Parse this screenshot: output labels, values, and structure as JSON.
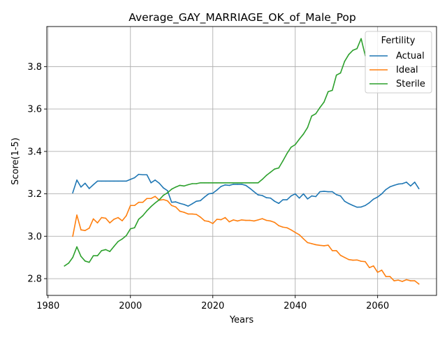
{
  "chart_data": {
    "type": "line",
    "title": "Average_GAY_MARRIAGE_OK_of_Male_Pop",
    "xlabel": "Years",
    "ylabel": "Score(1-5)",
    "xlim": [
      1979.7,
      2074.3
    ],
    "ylim": [
      2.721,
      3.989
    ],
    "xticks": [
      1980,
      2000,
      2020,
      2040,
      2060
    ],
    "yticks": [
      2.8,
      3.0,
      3.2,
      3.4,
      3.6,
      3.8
    ],
    "xtick_labels": [
      "1980",
      "2000",
      "2020",
      "2040",
      "2060"
    ],
    "ytick_labels": [
      "2.8",
      "3.0",
      "3.2",
      "3.4",
      "3.6",
      "3.8"
    ],
    "grid": true,
    "legend": {
      "title": "Fertility",
      "placement": "top-right"
    },
    "series": [
      {
        "name": "Actual",
        "color": "#1f77b4",
        "x": [
          1986,
          1987,
          1988,
          1989,
          1990,
          1991,
          1992,
          1993,
          1994,
          1995,
          1996,
          1997,
          1998,
          1999,
          2000,
          2001,
          2002,
          2003,
          2004,
          2005,
          2006,
          2007,
          2008,
          2009,
          2010,
          2011,
          2012,
          2013,
          2014,
          2015,
          2016,
          2017,
          2018,
          2019,
          2020,
          2021,
          2022,
          2023,
          2024,
          2025,
          2026,
          2027,
          2028,
          2029,
          2030,
          2031,
          2032,
          2033,
          2034,
          2035,
          2036,
          2037,
          2038,
          2039,
          2040,
          2041,
          2042,
          2043,
          2044,
          2045,
          2046,
          2047,
          2048,
          2049,
          2050,
          2051,
          2052,
          2053,
          2054,
          2055,
          2056,
          2057,
          2058,
          2059,
          2060,
          2061,
          2062,
          2063,
          2064,
          2065,
          2066,
          2067,
          2068,
          2069,
          2070
        ],
        "y": [
          3.205,
          3.265,
          3.232,
          3.25,
          3.225,
          3.243,
          3.26,
          3.26,
          3.26,
          3.26,
          3.26,
          3.26,
          3.26,
          3.26,
          3.268,
          3.276,
          3.292,
          3.29,
          3.29,
          3.252,
          3.265,
          3.25,
          3.228,
          3.215,
          3.16,
          3.162,
          3.155,
          3.15,
          3.142,
          3.153,
          3.165,
          3.168,
          3.185,
          3.2,
          3.203,
          3.218,
          3.235,
          3.242,
          3.24,
          3.245,
          3.245,
          3.245,
          3.24,
          3.226,
          3.21,
          3.195,
          3.192,
          3.182,
          3.18,
          3.165,
          3.155,
          3.172,
          3.172,
          3.19,
          3.2,
          3.18,
          3.2,
          3.176,
          3.19,
          3.187,
          3.21,
          3.212,
          3.21,
          3.21,
          3.196,
          3.19,
          3.165,
          3.154,
          3.145,
          3.137,
          3.138,
          3.145,
          3.158,
          3.175,
          3.185,
          3.2,
          3.22,
          3.233,
          3.24,
          3.246,
          3.248,
          3.255,
          3.237,
          3.255,
          3.225
        ]
      },
      {
        "name": "Ideal",
        "color": "#ff7f0e",
        "x": [
          1986,
          1987,
          1988,
          1989,
          1990,
          1991,
          1992,
          1993,
          1994,
          1995,
          1996,
          1997,
          1998,
          1999,
          2000,
          2001,
          2002,
          2003,
          2004,
          2005,
          2006,
          2007,
          2008,
          2009,
          2010,
          2011,
          2012,
          2013,
          2014,
          2015,
          2016,
          2017,
          2018,
          2019,
          2020,
          2021,
          2022,
          2023,
          2024,
          2025,
          2026,
          2027,
          2028,
          2029,
          2030,
          2031,
          2032,
          2033,
          2034,
          2035,
          2036,
          2037,
          2038,
          2039,
          2040,
          2041,
          2042,
          2043,
          2044,
          2045,
          2046,
          2047,
          2048,
          2049,
          2050,
          2051,
          2052,
          2053,
          2054,
          2055,
          2056,
          2057,
          2058,
          2059,
          2060,
          2061,
          2062,
          2063,
          2064,
          2065,
          2066,
          2067,
          2068,
          2069,
          2070
        ],
        "y": [
          3.0,
          3.1,
          3.03,
          3.027,
          3.038,
          3.082,
          3.063,
          3.088,
          3.085,
          3.063,
          3.08,
          3.088,
          3.073,
          3.097,
          3.145,
          3.145,
          3.16,
          3.16,
          3.178,
          3.178,
          3.188,
          3.17,
          3.173,
          3.167,
          3.145,
          3.138,
          3.118,
          3.113,
          3.105,
          3.105,
          3.103,
          3.09,
          3.073,
          3.07,
          3.06,
          3.08,
          3.078,
          3.088,
          3.068,
          3.077,
          3.072,
          3.077,
          3.075,
          3.075,
          3.072,
          3.077,
          3.083,
          3.075,
          3.072,
          3.065,
          3.05,
          3.043,
          3.04,
          3.03,
          3.018,
          3.007,
          2.988,
          2.97,
          2.965,
          2.96,
          2.957,
          2.955,
          2.958,
          2.932,
          2.932,
          2.91,
          2.9,
          2.89,
          2.887,
          2.888,
          2.882,
          2.88,
          2.852,
          2.86,
          2.83,
          2.84,
          2.81,
          2.81,
          2.79,
          2.793,
          2.787,
          2.795,
          2.79,
          2.79,
          2.775
        ]
      },
      {
        "name": "Sterile",
        "color": "#2ca02c",
        "x": [
          1984,
          1985,
          1986,
          1987,
          1988,
          1989,
          1990,
          1991,
          1992,
          1993,
          1994,
          1995,
          1996,
          1997,
          1998,
          1999,
          2000,
          2001,
          2002,
          2003,
          2004,
          2005,
          2006,
          2007,
          2008,
          2009,
          2010,
          2011,
          2012,
          2013,
          2014,
          2015,
          2016,
          2017,
          2018,
          2019,
          2020,
          2021,
          2022,
          2023,
          2024,
          2025,
          2026,
          2027,
          2028,
          2029,
          2030,
          2031,
          2032,
          2033,
          2034,
          2035,
          2036,
          2037,
          2038,
          2039,
          2040,
          2041,
          2042,
          2043,
          2044,
          2045,
          2046,
          2047,
          2048,
          2049,
          2050,
          2051,
          2052,
          2053,
          2054,
          2055,
          2056,
          2057
        ],
        "y": [
          2.86,
          2.873,
          2.9,
          2.95,
          2.905,
          2.883,
          2.877,
          2.908,
          2.908,
          2.932,
          2.937,
          2.928,
          2.952,
          2.975,
          2.987,
          3.003,
          3.035,
          3.04,
          3.08,
          3.097,
          3.12,
          3.14,
          3.157,
          3.172,
          3.193,
          3.205,
          3.222,
          3.232,
          3.24,
          3.237,
          3.243,
          3.248,
          3.248,
          3.252,
          3.252,
          3.252,
          3.252,
          3.252,
          3.252,
          3.252,
          3.252,
          3.252,
          3.252,
          3.252,
          3.252,
          3.252,
          3.252,
          3.252,
          3.268,
          3.287,
          3.302,
          3.317,
          3.322,
          3.355,
          3.39,
          3.42,
          3.432,
          3.458,
          3.482,
          3.513,
          3.567,
          3.578,
          3.607,
          3.633,
          3.682,
          3.688,
          3.76,
          3.77,
          3.825,
          3.857,
          3.877,
          3.885,
          3.932,
          3.852
        ]
      }
    ]
  }
}
